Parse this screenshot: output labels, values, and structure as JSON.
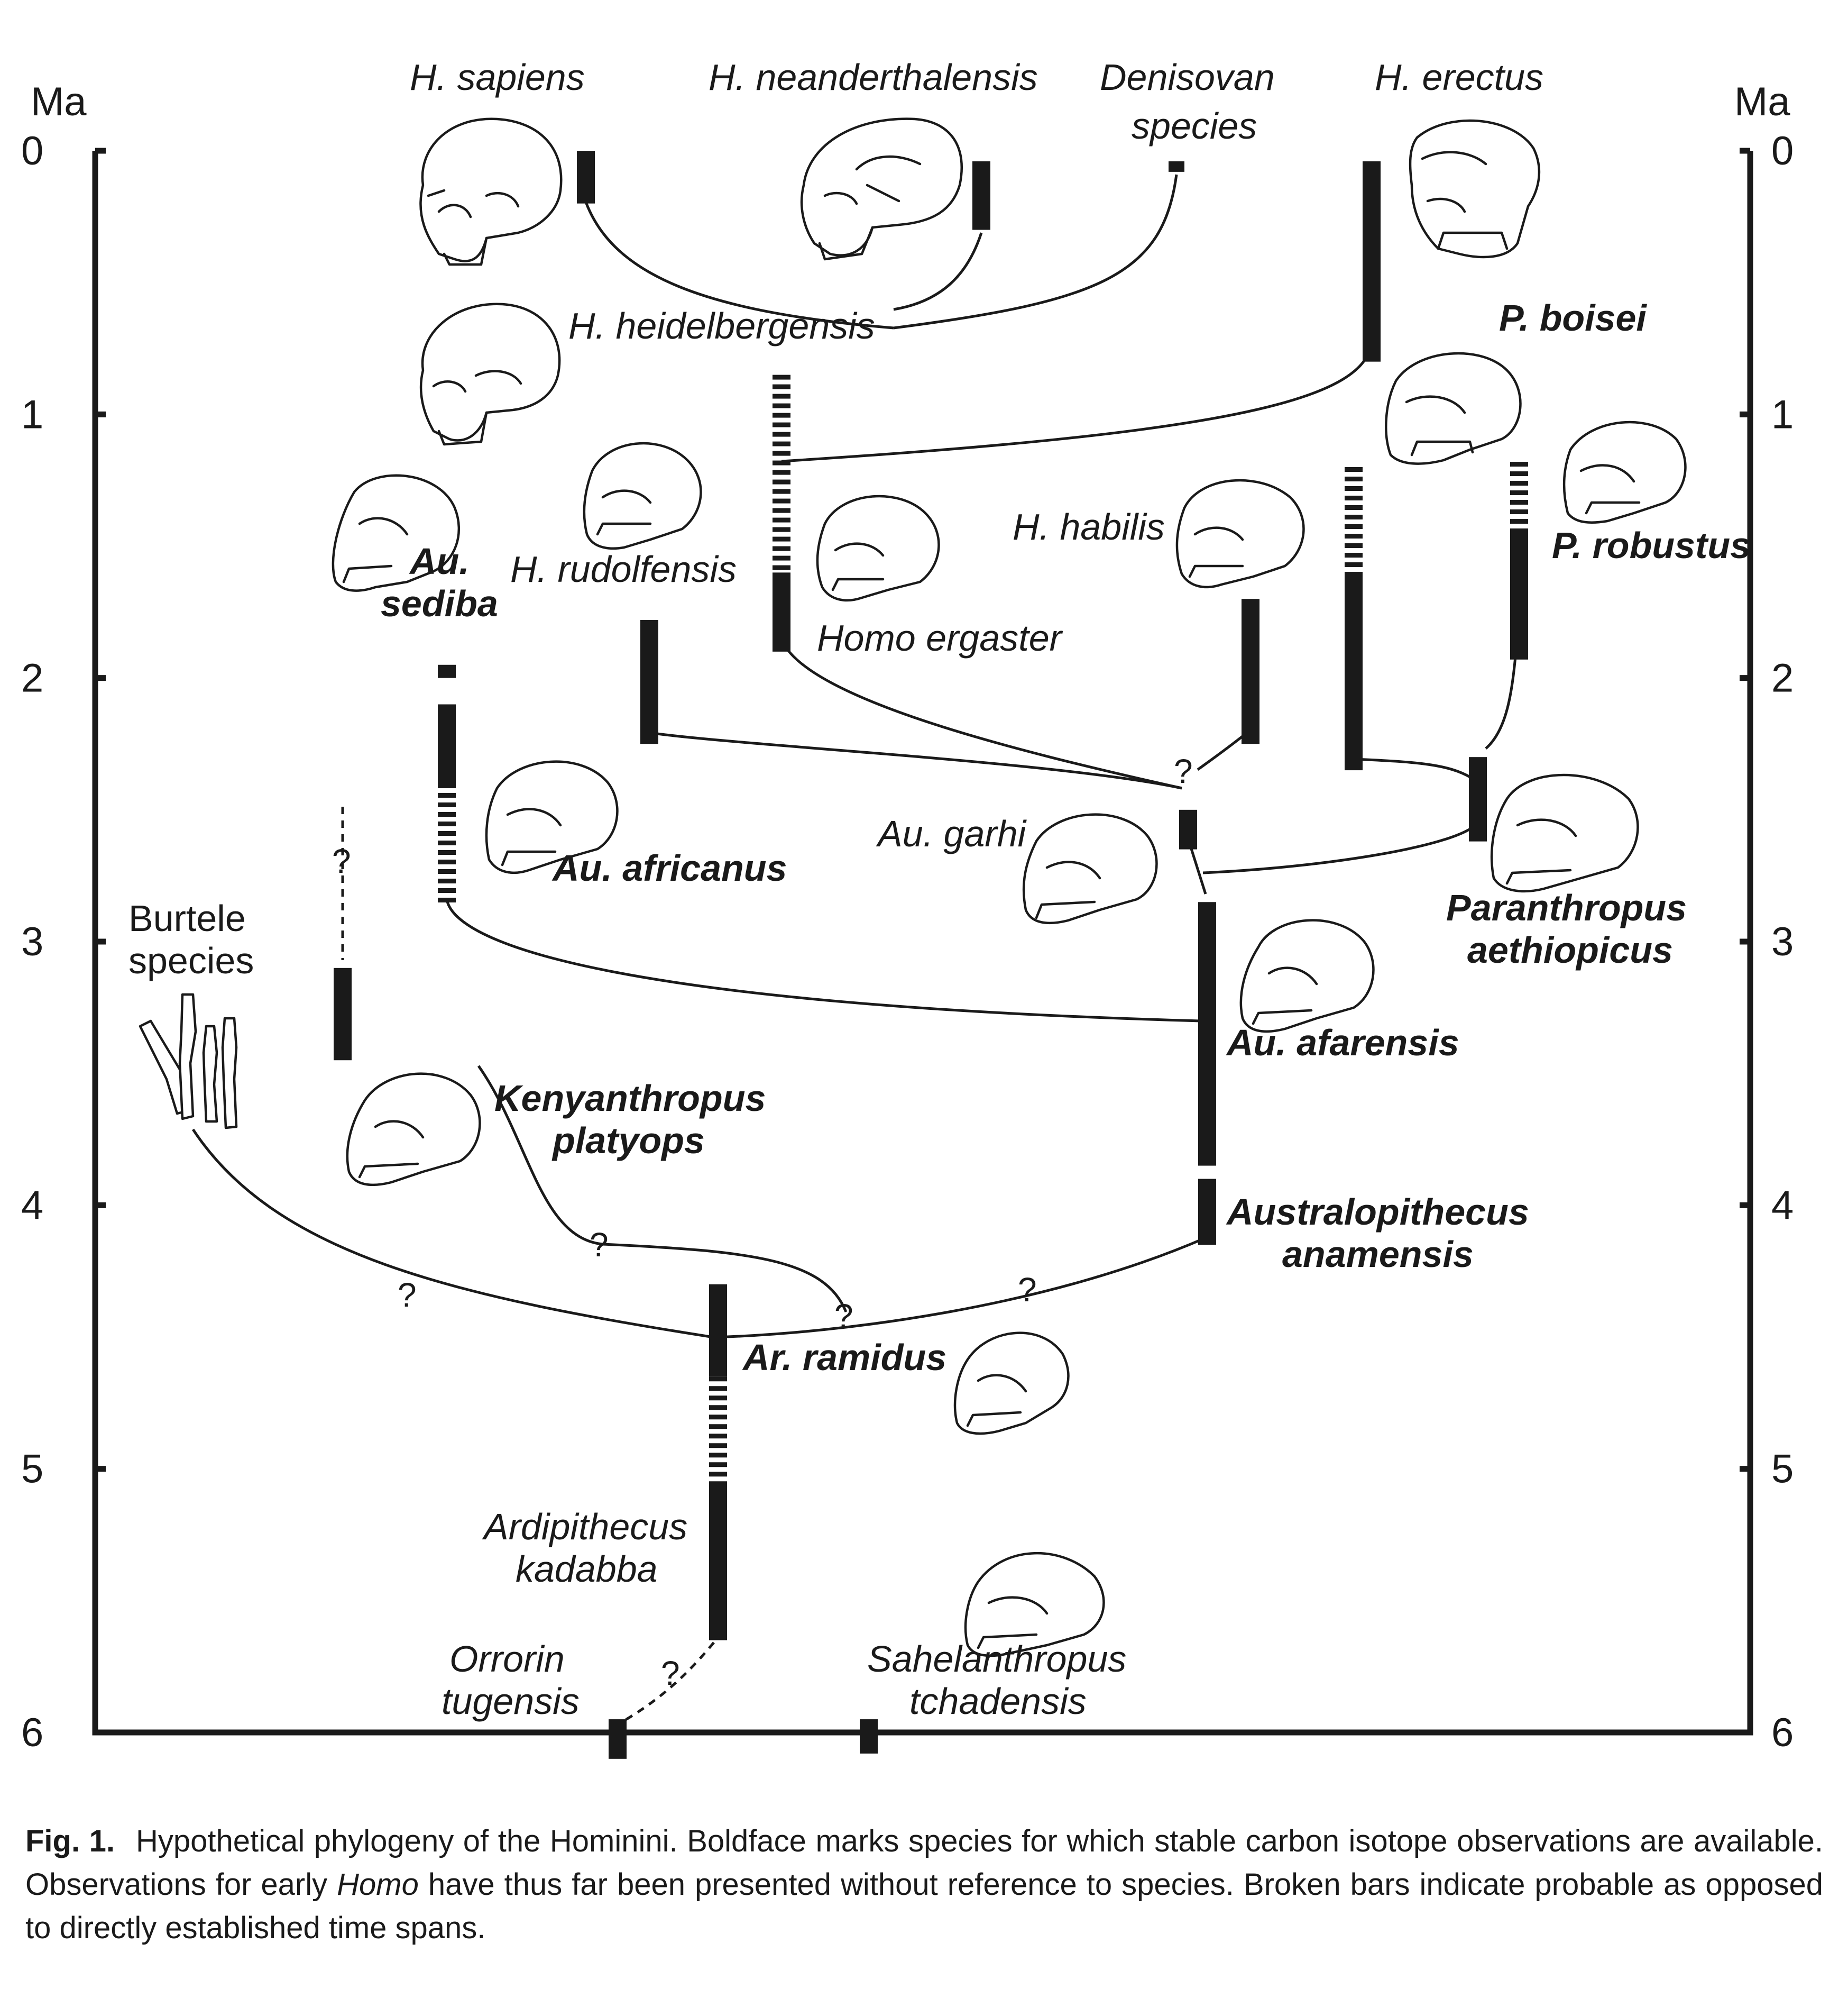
{
  "axis": {
    "title_left": "Ma",
    "title_right": "Ma",
    "ticks": [
      "0",
      "1",
      "2",
      "3",
      "4",
      "5",
      "6"
    ]
  },
  "species": [
    {
      "key": "sapiens",
      "label": "H. sapiens",
      "style": "italic",
      "range_ma": [
        0,
        0.2
      ],
      "probable_ma": null
    },
    {
      "key": "neanderthalensis",
      "label": "H. neanderthalensis",
      "style": "italic",
      "range_ma": [
        0.04,
        0.3
      ],
      "probable_ma": null
    },
    {
      "key": "denisovan",
      "label": [
        "Denisovan",
        "species"
      ],
      "style": "italic",
      "range_ma": [
        0.04,
        0.08
      ],
      "probable_ma": null
    },
    {
      "key": "erectus",
      "label": "H. erectus",
      "style": "italic",
      "range_ma": [
        0.04,
        0.8
      ],
      "probable_ma": null
    },
    {
      "key": "heidelbergensis",
      "label": "H. heidelbergensis",
      "style": "italic",
      "range_ma": null,
      "probable_ma": [
        0.85,
        1.6
      ]
    },
    {
      "key": "ergaster",
      "label": "Homo ergaster",
      "style": "italic",
      "range_ma": [
        1.6,
        1.9
      ],
      "probable_ma": null
    },
    {
      "key": "boisei",
      "label": "P. boisei",
      "style": "bold",
      "range_ma": [
        1.6,
        2.35
      ],
      "probable_ma": [
        1.2,
        1.6
      ]
    },
    {
      "key": "robustus",
      "label": "P. robustus",
      "style": "bold",
      "range_ma": [
        1.45,
        1.93
      ],
      "probable_ma": [
        1.18,
        1.45
      ]
    },
    {
      "key": "sediba",
      "label": [
        "Au.",
        "sediba"
      ],
      "style": "bold",
      "range_ma": [
        1.95,
        2.0
      ],
      "probable_ma": null
    },
    {
      "key": "rudolfensis",
      "label": "H. rudolfensis",
      "style": "italic",
      "range_ma": [
        1.78,
        2.25
      ],
      "probable_ma": null
    },
    {
      "key": "habilis",
      "label": "H. habilis",
      "style": "italic",
      "range_ma": [
        1.7,
        2.25
      ],
      "probable_ma": null
    },
    {
      "key": "africanus",
      "label": "Au. africanus",
      "style": "bold",
      "range_ma": [
        2.1,
        2.4
      ],
      "probable_ma": [
        2.4,
        2.85
      ]
    },
    {
      "key": "garhi",
      "label": "Au. garhi",
      "style": "italic",
      "range_ma": [
        2.5,
        2.65
      ],
      "probable_ma": null
    },
    {
      "key": "aethiopicus",
      "label": [
        "Paranthropus",
        "aethiopicus"
      ],
      "style": "bold",
      "range_ma": [
        2.3,
        2.62
      ],
      "probable_ma": null
    },
    {
      "key": "burtele",
      "label": [
        "Burtele",
        "species"
      ],
      "style": "plain",
      "range_ma": null,
      "probable_ma": null
    },
    {
      "key": "platyops",
      "label": [
        "Kenyanthropus",
        "platyops"
      ],
      "style": "bold",
      "range_ma": [
        3.1,
        3.45
      ],
      "probable_ma": null
    },
    {
      "key": "afarensis",
      "label": "Au. afarensis",
      "style": "bold",
      "range_ma": [
        2.85,
        3.85
      ],
      "probable_ma": null
    },
    {
      "key": "anamensis",
      "label": [
        "Australopithecus",
        "anamensis"
      ],
      "style": "bold",
      "range_ma": [
        3.9,
        4.15
      ],
      "probable_ma": null
    },
    {
      "key": "ramidus",
      "label": "Ar. ramidus",
      "style": "bold",
      "range_ma": [
        4.3,
        4.65
      ],
      "probable_ma": [
        4.65,
        5.05
      ]
    },
    {
      "key": "kadabba",
      "label": [
        "Ardipithecus",
        "kadabba"
      ],
      "style": "italic",
      "range_ma": [
        5.05,
        5.65
      ],
      "probable_ma": null
    },
    {
      "key": "orrorin",
      "label": [
        "Orrorin",
        "tugensis"
      ],
      "style": "italic",
      "range_ma": [
        5.95,
        6.1
      ],
      "probable_ma": null
    },
    {
      "key": "sahelanthropus",
      "label": [
        "Sahelanthropus",
        "tchadensis"
      ],
      "style": "italic",
      "range_ma": [
        5.95,
        6.08
      ],
      "probable_ma": null
    }
  ],
  "uncertain_mark": "?",
  "caption": {
    "label": "Fig. 1.",
    "text_1": "Hypothetical phylogeny of the Hominini. Boldface marks species for which stable carbon isotope observations are available. Observations for early ",
    "text_em": "Homo",
    "text_2": " have thus far been presented without reference to species. Broken bars indicate probable as opposed to directly established time spans."
  }
}
